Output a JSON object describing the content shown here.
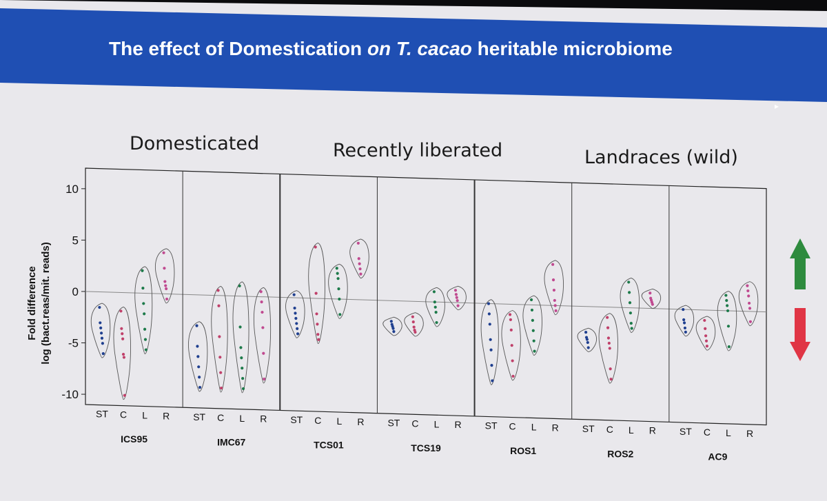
{
  "slide": {
    "title_part1": "The effect of Domestication ",
    "title_part2": "on T. cacao",
    "title_part3": " heritable microbiome"
  },
  "groups": {
    "domesticated": "Domesticated",
    "recent": "Recently liberated",
    "landraces": "Landraces (wild)"
  },
  "arrows": {
    "up_color": "#2e8b3e",
    "down_color": "#e03545"
  },
  "chart_data": {
    "type": "violin",
    "ylabel_line1": "Fold difference",
    "ylabel_line2": "log (bact.reas/mit. reads)",
    "ylim": [
      -11,
      12
    ],
    "yticks": [
      "10",
      "5",
      "0",
      "-5",
      "-10"
    ],
    "hline": 0,
    "sample_colors": {
      "ST": "#1f3f8f",
      "C": "#c0406a",
      "L": "#1d7a4a",
      "R": "#c04a90"
    },
    "panels": [
      {
        "name": "ICS95",
        "tissues": [
          {
            "label": "ST",
            "points": [
              -1.5,
              -3.0,
              -3.5,
              -4.0,
              -4.5,
              -5.0,
              -6.0
            ]
          },
          {
            "label": "C",
            "points": [
              -1.8,
              -3.5,
              -4.0,
              -4.5,
              -6.0,
              -6.3,
              -10.0
            ]
          },
          {
            "label": "L",
            "points": [
              2.2,
              0.5,
              -1.0,
              -2.0,
              -3.5,
              -4.5,
              -5.5
            ]
          },
          {
            "label": "R",
            "points": [
              4.0,
              2.5,
              1.2,
              0.8,
              0.5,
              -0.5
            ]
          }
        ]
      },
      {
        "name": "IMC67",
        "tissues": [
          {
            "label": "ST",
            "points": [
              -3.0,
              -5.0,
              -6.0,
              -7.0,
              -8.0,
              -9.0
            ]
          },
          {
            "label": "C",
            "points": [
              0.5,
              -1.0,
              -4.0,
              -6.0,
              -7.5,
              -9.0
            ]
          },
          {
            "label": "L",
            "points": [
              1.0,
              -3.0,
              -5.0,
              -6.0,
              -7.0,
              -8.0,
              -9.0
            ]
          },
          {
            "label": "R",
            "points": [
              0.5,
              -0.5,
              -1.5,
              -3.0,
              -5.5,
              -8.0
            ]
          }
        ]
      },
      {
        "name": "TCS01",
        "tissues": [
          {
            "label": "ST",
            "points": [
              0.3,
              -1.0,
              -1.5,
              -2.0,
              -2.5,
              -3.0,
              -3.5
            ]
          },
          {
            "label": "C",
            "points": [
              5.0,
              0.5,
              -1.5,
              -2.5,
              -3.5,
              -4.0
            ]
          },
          {
            "label": "L",
            "points": [
              3.0,
              2.5,
              2.0,
              1.0,
              0.0,
              -1.5
            ]
          },
          {
            "label": "R",
            "points": [
              5.5,
              4.0,
              3.5,
              3.0,
              2.5
            ]
          }
        ]
      },
      {
        "name": "TCS19",
        "tissues": [
          {
            "label": "ST",
            "points": [
              -2.0,
              -2.3,
              -2.5,
              -2.7,
              -3.0
            ]
          },
          {
            "label": "C",
            "points": [
              -1.5,
              -2.0,
              -2.5,
              -2.8,
              -3.0
            ]
          },
          {
            "label": "L",
            "points": [
              1.0,
              0.0,
              -0.5,
              -1.0,
              -2.0
            ]
          },
          {
            "label": "R",
            "points": [
              1.2,
              0.8,
              0.5,
              0.2,
              -0.3
            ]
          }
        ]
      },
      {
        "name": "ROS1",
        "tissues": [
          {
            "label": "ST",
            "points": [
              0.0,
              -1.0,
              -2.0,
              -3.5,
              -4.5,
              -6.0,
              -7.5
            ]
          },
          {
            "label": "C",
            "points": [
              -1.0,
              -1.5,
              -2.5,
              -4.0,
              -5.5,
              -7.0
            ]
          },
          {
            "label": "L",
            "points": [
              0.5,
              -0.5,
              -1.5,
              -2.5,
              -3.5,
              -4.5
            ]
          },
          {
            "label": "R",
            "points": [
              4.0,
              2.5,
              1.5,
              0.5,
              0.0,
              -0.5
            ]
          }
        ]
      },
      {
        "name": "ROS2",
        "tissues": [
          {
            "label": "ST",
            "points": [
              -2.5,
              -3.0,
              -3.2,
              -3.5,
              -4.0
            ]
          },
          {
            "label": "C",
            "points": [
              -1.0,
              -2.0,
              -3.0,
              -3.5,
              -4.0,
              -6.0,
              -7.0
            ]
          },
          {
            "label": "L",
            "points": [
              2.5,
              1.5,
              0.5,
              -0.5,
              -1.5,
              -2.0
            ]
          },
          {
            "label": "R",
            "points": [
              1.5,
              1.0,
              0.8,
              0.6,
              0.4
            ]
          }
        ]
      },
      {
        "name": "AC9",
        "tissues": [
          {
            "label": "ST",
            "points": [
              0.0,
              -1.0,
              -1.3,
              -1.8,
              -2.2
            ]
          },
          {
            "label": "C",
            "points": [
              -1.0,
              -1.8,
              -2.5,
              -3.0,
              -3.5
            ]
          },
          {
            "label": "L",
            "points": [
              1.5,
              1.0,
              0.5,
              0.0,
              -1.5,
              -3.5
            ]
          },
          {
            "label": "R",
            "points": [
              2.5,
              2.0,
              1.5,
              0.8,
              0.3,
              -1.0
            ]
          }
        ]
      }
    ]
  }
}
